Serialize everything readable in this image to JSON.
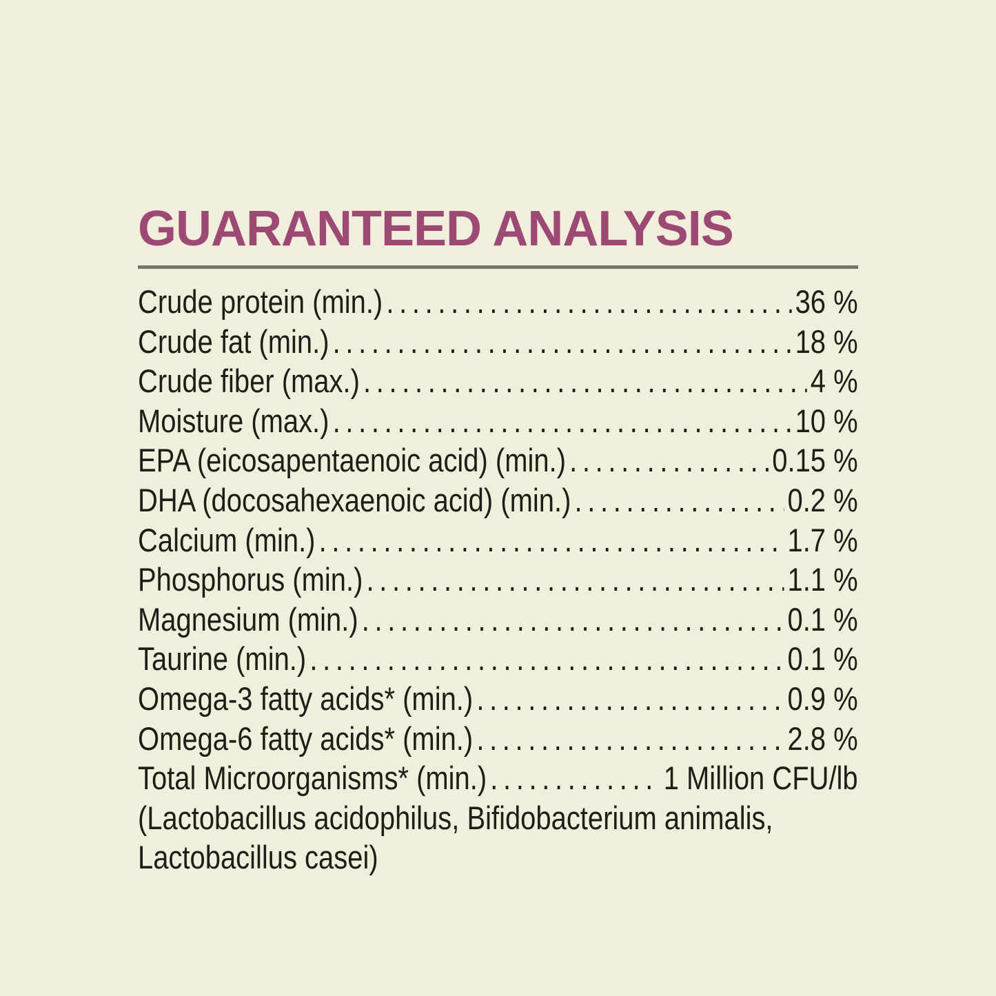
{
  "colors": {
    "background": "#f1eedc",
    "title": "#9c4a73",
    "rule": "#75746b",
    "text": "#201d18"
  },
  "header": {
    "title": "GUARANTEED ANALYSIS"
  },
  "analysis": {
    "rows": [
      {
        "label": "Crude protein (min.)",
        "value": "36 %"
      },
      {
        "label": "Crude fat (min.)",
        "value": "18 %"
      },
      {
        "label": "Crude fiber (max.)",
        "value": "4 %"
      },
      {
        "label": "Moisture (max.)",
        "value": "10 %"
      },
      {
        "label": "EPA (eicosapentaenoic acid) (min.)",
        "value": "0.15 %"
      },
      {
        "label": "DHA (docosahexaenoic acid) (min.)",
        "value": "0.2 %"
      },
      {
        "label": "Calcium (min.)",
        "value": "1.7 %"
      },
      {
        "label": "Phosphorus (min.)",
        "value": "1.1 %"
      },
      {
        "label": "Magnesium (min.)",
        "value": "0.1 %"
      },
      {
        "label": "Taurine (min.)",
        "value": "0.1 %"
      },
      {
        "label": "Omega-3 fatty acids* (min.)",
        "value": "0.9 %"
      },
      {
        "label": "Omega-6 fatty acids* (min.)",
        "value": "2.8 %"
      },
      {
        "label": "Total Microorganisms* (min.)",
        "value": "1 Million CFU/lb"
      }
    ],
    "footnote_lines": [
      "(Lactobacillus acidophilus, Bifidobacterium animalis,",
      "Lactobacillus casei)"
    ]
  }
}
